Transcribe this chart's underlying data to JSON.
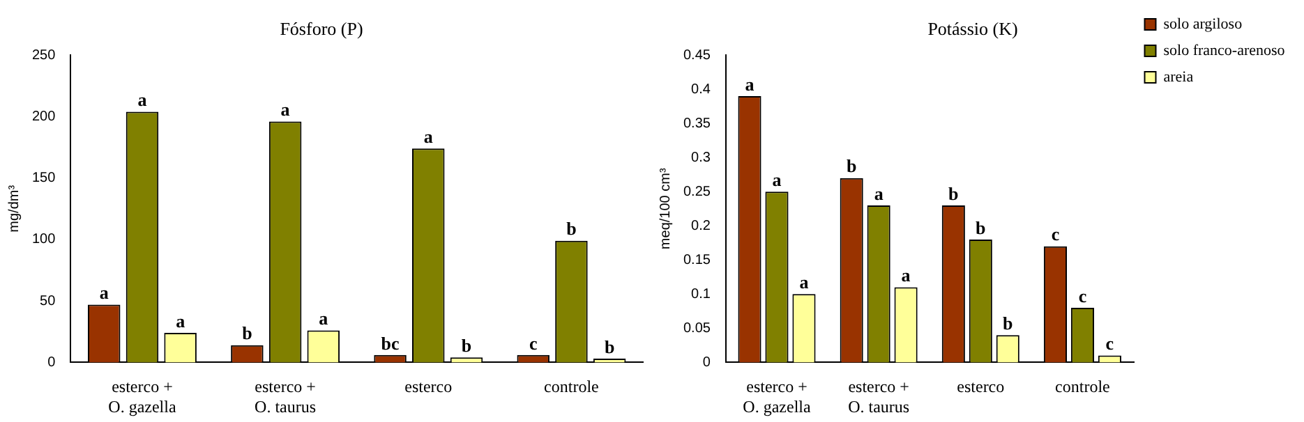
{
  "chart_data": [
    {
      "type": "bar",
      "title": "Fósforo (P)",
      "ylabel": "mg/dm³",
      "categories": [
        "esterco +\nO. gazella",
        "esterco +\nO. taurus",
        "esterco",
        "controle"
      ],
      "ylim": [
        0,
        250
      ],
      "yticks": [
        0,
        50,
        100,
        150,
        200,
        250
      ],
      "grid": false,
      "legend": false,
      "series": [
        {
          "color": "#993300",
          "values": [
            47,
            14,
            6,
            6
          ],
          "value_labels": [
            "a",
            "b",
            "bc",
            "c"
          ]
        },
        {
          "color": "#808000",
          "values": [
            204,
            196,
            174,
            99
          ],
          "value_labels": [
            "a",
            "a",
            "a",
            "b"
          ]
        },
        {
          "color": "#ffff99",
          "values": [
            24,
            26,
            4,
            3
          ],
          "value_labels": [
            "a",
            "a",
            "b",
            "b"
          ]
        }
      ]
    },
    {
      "type": "bar",
      "title": "Potássio (K)",
      "ylabel": "meq/100 cm³",
      "categories": [
        "esterco +\nO. gazella",
        "esterco +\nO. taurus",
        "esterco",
        "controle"
      ],
      "ylim": [
        0,
        0.45
      ],
      "yticks": [
        0,
        0.05,
        0.1,
        0.15,
        0.2,
        0.25,
        0.3,
        0.35,
        0.4,
        0.45
      ],
      "grid": false,
      "legend": "top right",
      "series": [
        {
          "name": "solo argiloso",
          "color": "#993300",
          "values": [
            0.39,
            0.27,
            0.23,
            0.17
          ],
          "value_labels": [
            "a",
            "b",
            "b",
            "c"
          ]
        },
        {
          "name": "solo franco-arenoso",
          "color": "#808000",
          "values": [
            0.25,
            0.23,
            0.18,
            0.08
          ],
          "value_labels": [
            "a",
            "a",
            "b",
            "c"
          ]
        },
        {
          "name": "areia",
          "color": "#ffff99",
          "values": [
            0.1,
            0.11,
            0.04,
            0.01
          ],
          "value_labels": [
            "a",
            "a",
            "b",
            "c"
          ]
        }
      ]
    }
  ]
}
